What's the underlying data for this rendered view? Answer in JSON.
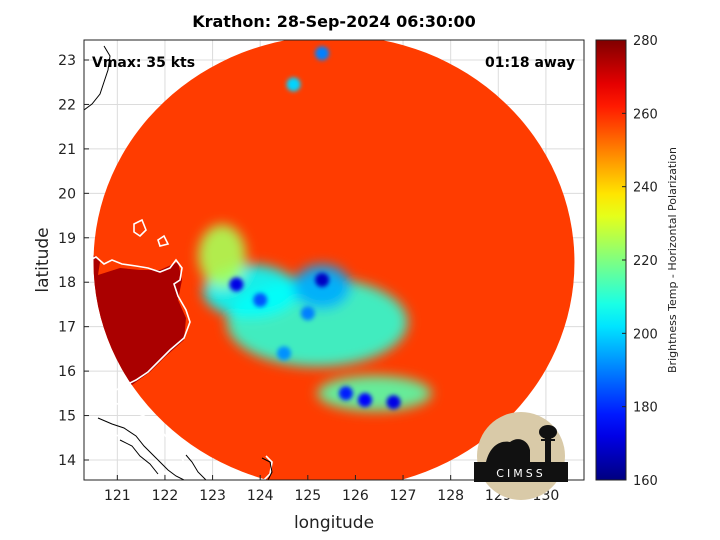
{
  "chart_data": {
    "type": "heatmap",
    "title": "Krathon: 28-Sep-2024 06:30:00",
    "xlabel": "longitude",
    "ylabel": "latitude",
    "xlim": [
      120.3,
      130.8
    ],
    "ylim": [
      13.55,
      23.45
    ],
    "xticks": [
      121,
      122,
      123,
      124,
      125,
      126,
      127,
      128,
      129,
      130
    ],
    "yticks": [
      14,
      15,
      16,
      17,
      18,
      19,
      20,
      21,
      22,
      23
    ],
    "grid": true,
    "annotations": {
      "vmax": "Vmax: 35 kts",
      "time_offset": "01:18 away"
    },
    "colorbar": {
      "label": "Brightness Temp - Horizontal Polarization",
      "min": 160,
      "max": 280,
      "ticks": [
        160,
        180,
        200,
        220,
        240,
        260,
        280
      ],
      "colormap": "jet"
    },
    "swath": {
      "center": [
        125.55,
        18.45
      ],
      "radius_deg_lon": 5.05,
      "radius_deg_lat": 5.1,
      "background_temp": 258
    },
    "features": [
      {
        "name": "eye-region",
        "lon": 125.2,
        "lat": 17.1,
        "rx": 1.9,
        "ry": 1.0,
        "temp": 210
      },
      {
        "name": "west-band",
        "lon": 123.8,
        "lat": 17.8,
        "rx": 1.0,
        "ry": 0.6,
        "temp": 205
      },
      {
        "name": "core-north",
        "lon": 125.3,
        "lat": 17.9,
        "rx": 0.6,
        "ry": 0.5,
        "temp": 195
      },
      {
        "name": "south-band",
        "lon": 126.4,
        "lat": 15.5,
        "rx": 1.2,
        "ry": 0.4,
        "temp": 215
      },
      {
        "name": "spiral-west",
        "lon": 123.2,
        "lat": 18.6,
        "rx": 0.5,
        "ry": 0.7,
        "temp": 225
      }
    ],
    "hot_cells": [
      {
        "lon": 123.5,
        "lat": 17.95,
        "temp": 172
      },
      {
        "lon": 124.0,
        "lat": 17.6,
        "temp": 185
      },
      {
        "lon": 125.3,
        "lat": 18.05,
        "temp": 168
      },
      {
        "lon": 125.0,
        "lat": 17.3,
        "temp": 190
      },
      {
        "lon": 124.5,
        "lat": 16.4,
        "temp": 192
      },
      {
        "lon": 125.8,
        "lat": 15.5,
        "temp": 178
      },
      {
        "lon": 126.2,
        "lat": 15.35,
        "temp": 175
      },
      {
        "lon": 126.8,
        "lat": 15.3,
        "temp": 172
      },
      {
        "lon": 125.3,
        "lat": 23.15,
        "temp": 190
      },
      {
        "lon": 124.7,
        "lat": 22.45,
        "temp": 200
      }
    ],
    "clear_area": {
      "name": "dark-west-region",
      "temp": 275
    }
  },
  "logo": {
    "text": "CIMSS"
  }
}
